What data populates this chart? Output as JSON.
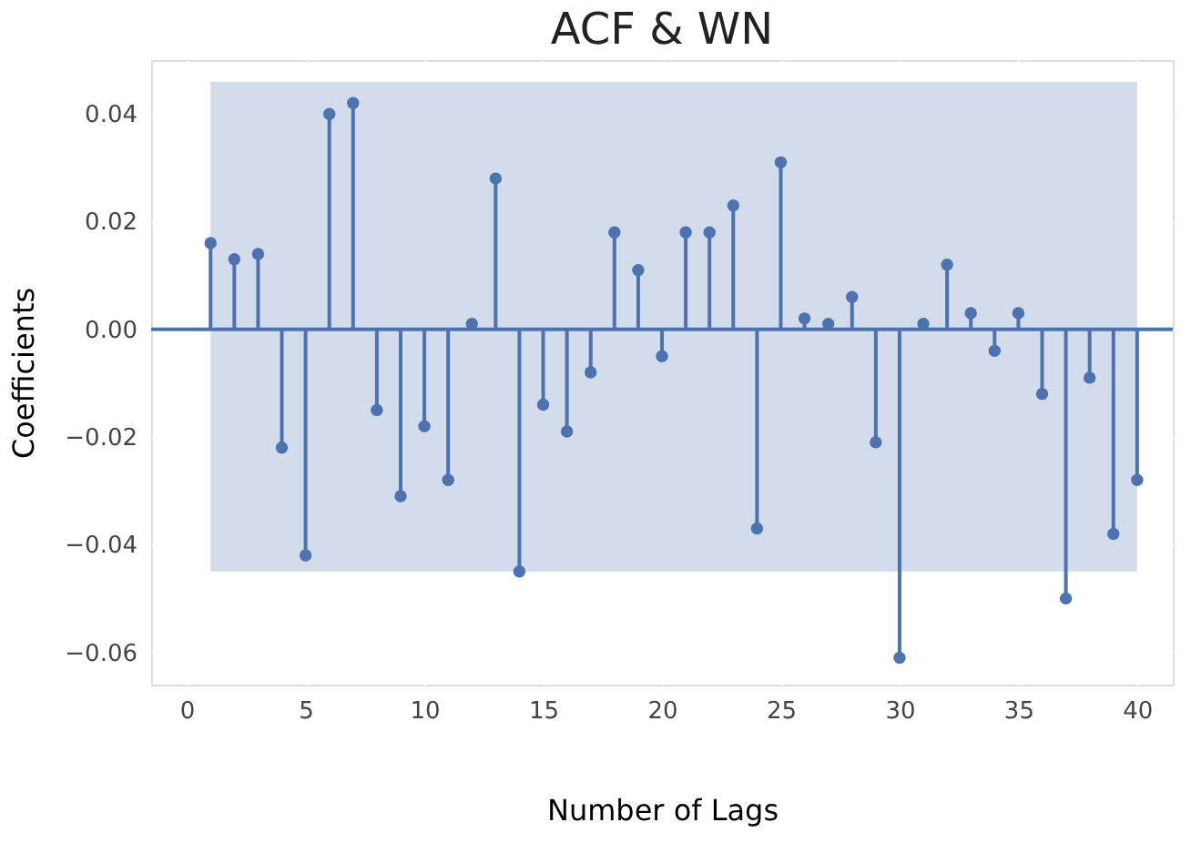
{
  "chart_data": {
    "type": "lollipop",
    "title": "ACF & WN",
    "xlabel": "Number of Lags",
    "ylabel": "Coefficients",
    "x": [
      1,
      2,
      3,
      4,
      5,
      6,
      7,
      8,
      9,
      10,
      11,
      12,
      13,
      14,
      15,
      16,
      17,
      18,
      19,
      20,
      21,
      22,
      23,
      24,
      25,
      26,
      27,
      28,
      29,
      30,
      31,
      32,
      33,
      34,
      35,
      36,
      37,
      38,
      39,
      40
    ],
    "series": [
      {
        "color": "#4c72b0",
        "values": [
          0.016,
          0.013,
          0.014,
          -0.022,
          -0.042,
          0.04,
          0.042,
          -0.015,
          -0.031,
          -0.018,
          -0.028,
          0.001,
          0.028,
          -0.045,
          -0.014,
          -0.019,
          -0.008,
          0.018,
          0.011,
          -0.005,
          0.018,
          0.018,
          0.023,
          -0.037,
          0.031,
          0.002,
          0.001,
          0.006,
          -0.021,
          -0.061,
          0.001,
          0.012,
          0.003,
          -0.004,
          0.003,
          -0.012,
          -0.05,
          -0.009,
          -0.038,
          -0.028
        ]
      }
    ],
    "bands": [
      {
        "axis": "y",
        "from": -0.045,
        "to": 0.046,
        "color": "#4c72b0"
      }
    ],
    "ref_lines": [
      {
        "axis": "y",
        "value": 0,
        "color": "#4c72b0"
      }
    ],
    "xlim": [
      -1.5,
      41.5
    ],
    "xticks": [
      0,
      5,
      10,
      15,
      20,
      25,
      30,
      35,
      40
    ],
    "ylim": [
      -0.066,
      0.05
    ],
    "yticks": [
      {
        "value": -0.06,
        "label": "−0.06"
      },
      {
        "value": -0.04,
        "label": "−0.04"
      },
      {
        "value": -0.02,
        "label": "−0.02"
      },
      {
        "value": 0,
        "label": "0.00"
      },
      {
        "value": 0.02,
        "label": "0.02"
      },
      {
        "value": 0.04,
        "label": "0.04"
      }
    ],
    "grid": true,
    "marker": "circle"
  }
}
